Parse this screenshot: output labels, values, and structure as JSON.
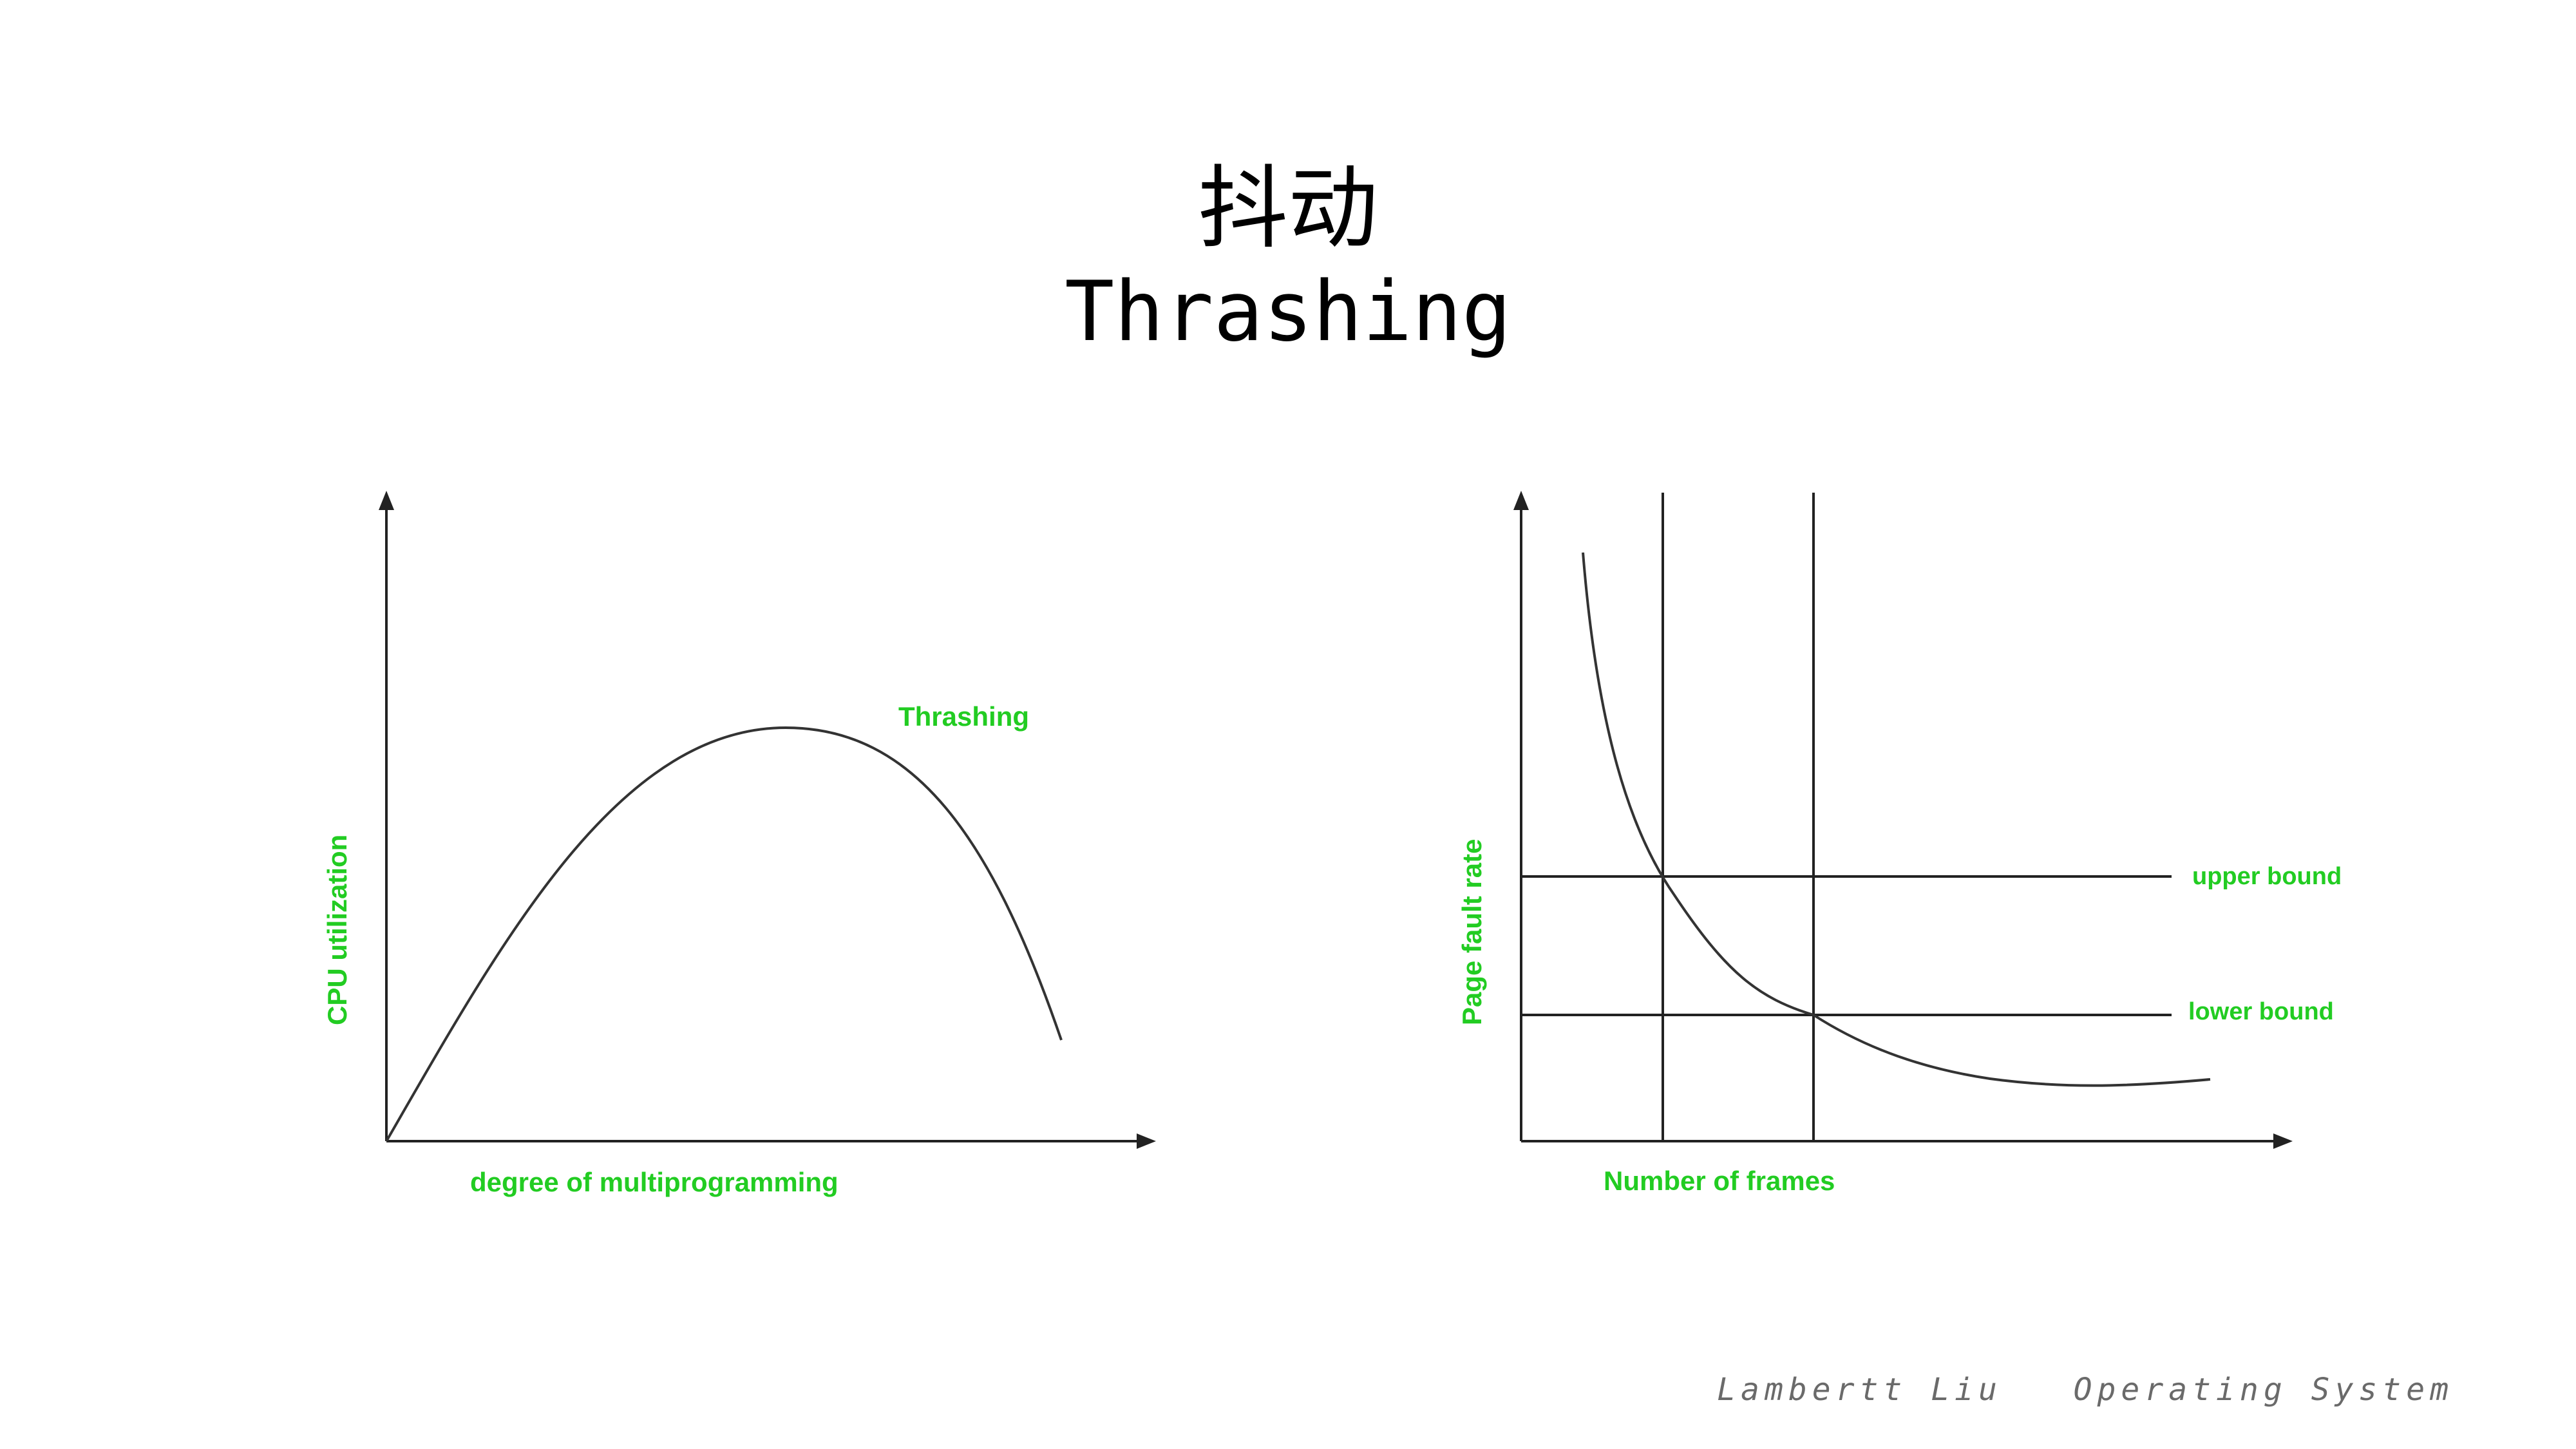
{
  "slide": {
    "title_zh": "抖动",
    "title_en": "Thrashing",
    "footer_author": "Lambertt Liu",
    "footer_course": "Operating System"
  },
  "colors": {
    "label": "#22cc22",
    "line": "#333333",
    "axis": "#222222"
  },
  "left_diagram": {
    "y_label": "CPU utilization",
    "x_label": "degree of multiprogramming",
    "curve_label": "Thrashing"
  },
  "right_diagram": {
    "y_label": "Page fault rate",
    "x_label": "Number of frames",
    "upper_label": "upper bound",
    "lower_label": "lower bound"
  }
}
